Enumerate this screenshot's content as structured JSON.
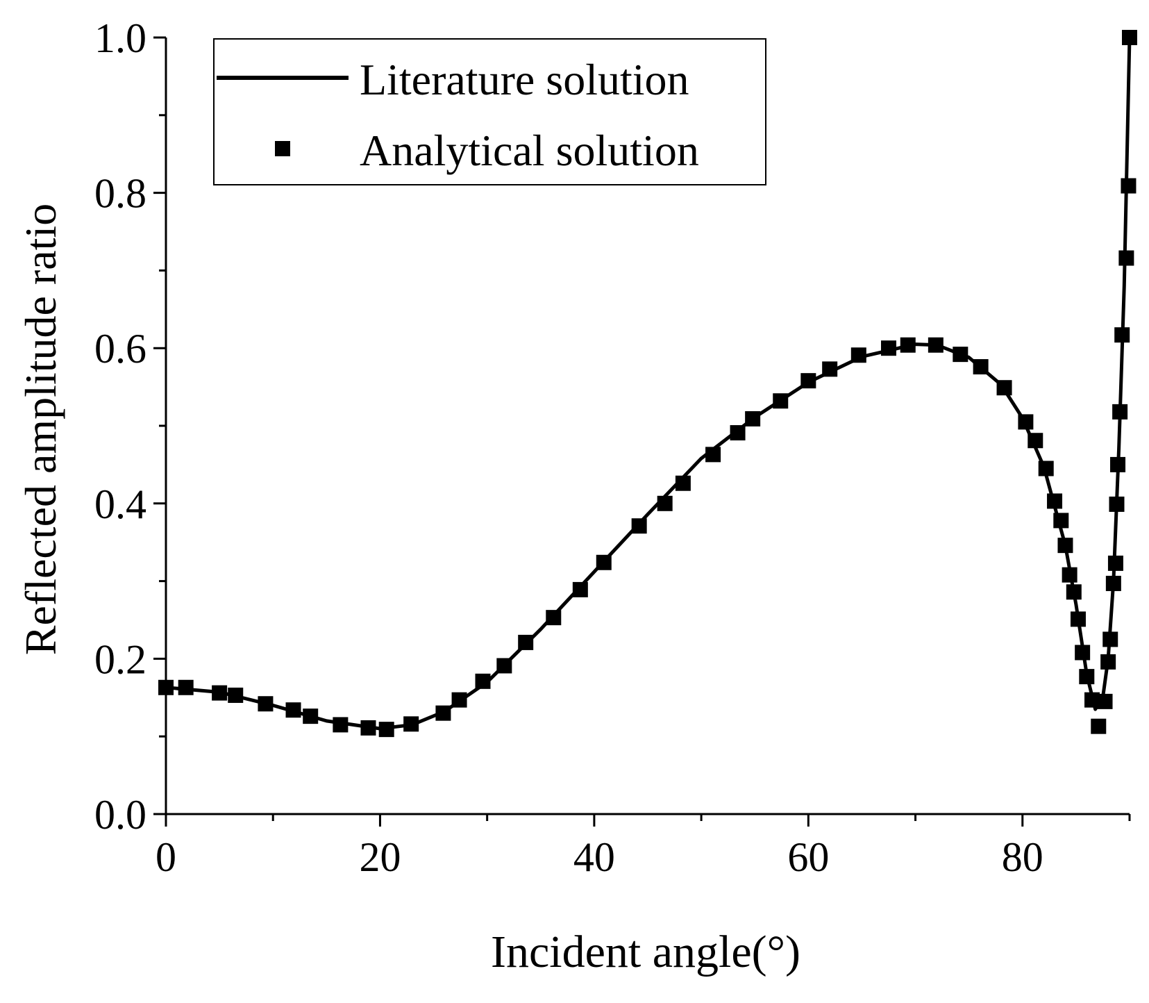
{
  "chart_data": {
    "type": "line",
    "xlabel": "Incident angle(°)",
    "ylabel": "Reflected amplitude ratio",
    "xlim": [
      0,
      90
    ],
    "ylim": [
      0,
      1
    ],
    "xticks": [
      0,
      20,
      40,
      60,
      80
    ],
    "xticks_minor": [
      10,
      30,
      50,
      70,
      90
    ],
    "yticks": [
      {
        "value": 0,
        "label": "0.0"
      },
      0.2,
      0.4,
      0.6,
      0.8,
      {
        "value": 1,
        "label": "1.0"
      }
    ],
    "yticks_minor": [
      0.1,
      0.3,
      0.5,
      0.7,
      0.9
    ],
    "legend": "upper left",
    "series": [
      {
        "name": "Literature solution",
        "style": "line",
        "color": "#000000",
        "x": [
          0,
          5,
          10,
          15,
          20,
          23,
          26,
          30,
          35,
          40,
          45,
          50,
          55,
          60,
          65,
          70,
          72,
          75,
          78,
          80,
          82,
          84,
          85,
          86,
          86.8,
          87.5,
          88,
          88.5,
          89,
          89.5,
          90
        ],
        "values": [
          0.163,
          0.157,
          0.14,
          0.12,
          0.11,
          0.115,
          0.132,
          0.17,
          0.238,
          0.312,
          0.386,
          0.458,
          0.511,
          0.556,
          0.589,
          0.605,
          0.604,
          0.588,
          0.553,
          0.51,
          0.447,
          0.346,
          0.27,
          0.18,
          0.135,
          0.15,
          0.2,
          0.3,
          0.47,
          0.68,
          1.0
        ]
      },
      {
        "name": "Analytical solution",
        "style": "markers",
        "color": "#000000",
        "x": [
          0,
          1.86,
          5.0,
          6.5,
          9.3,
          11.9,
          13.5,
          16.3,
          18.9,
          20.6,
          22.9,
          25.9,
          27.4,
          29.6,
          31.6,
          33.6,
          36.2,
          38.7,
          40.9,
          44.2,
          46.6,
          48.3,
          51.1,
          53.4,
          54.8,
          57.4,
          60.0,
          62.0,
          64.7,
          67.5,
          69.3,
          71.9,
          74.2,
          76.1,
          78.3,
          80.3,
          81.2,
          82.2,
          83.0,
          83.6,
          84.0,
          84.4,
          84.8,
          85.2,
          85.6,
          86.0,
          86.5,
          87.1,
          87.7,
          88.0,
          88.2,
          88.5,
          88.7,
          88.8,
          88.9,
          89.1,
          89.3,
          89.7,
          89.9,
          90.0
        ],
        "values": [
          0.163,
          0.163,
          0.156,
          0.153,
          0.142,
          0.134,
          0.126,
          0.115,
          0.111,
          0.109,
          0.116,
          0.13,
          0.147,
          0.171,
          0.191,
          0.221,
          0.253,
          0.289,
          0.324,
          0.371,
          0.4,
          0.426,
          0.463,
          0.491,
          0.509,
          0.532,
          0.558,
          0.573,
          0.591,
          0.6,
          0.604,
          0.604,
          0.592,
          0.576,
          0.549,
          0.505,
          0.481,
          0.445,
          0.403,
          0.378,
          0.346,
          0.308,
          0.286,
          0.251,
          0.208,
          0.177,
          0.147,
          0.113,
          0.145,
          0.196,
          0.225,
          0.297,
          0.323,
          0.399,
          0.45,
          0.518,
          0.617,
          0.716,
          0.809,
          1.0
        ]
      }
    ]
  }
}
